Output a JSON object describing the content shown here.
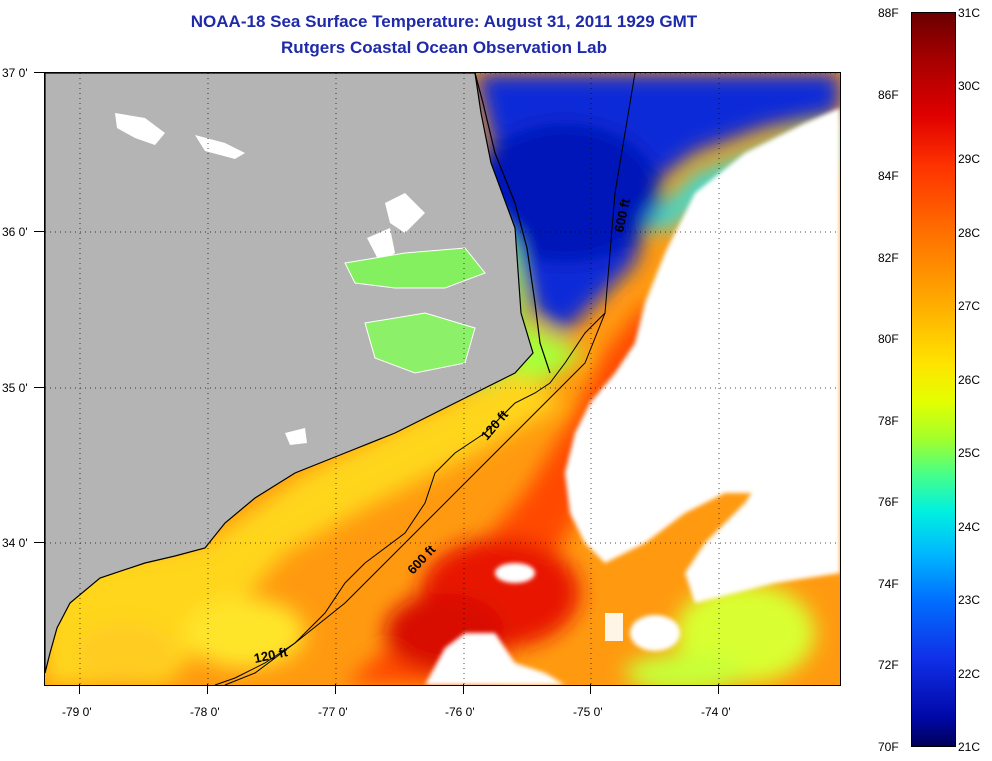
{
  "title": {
    "line1": "NOAA-18 Sea Surface Temperature:  August 31, 2011 1929 GMT",
    "line2": "Rutgers Coastal Ocean Observation Lab"
  },
  "map": {
    "lat_labels": [
      "37 0'",
      "36 0'",
      "35 0'",
      "34 0'"
    ],
    "lon_labels": [
      "-79 0'",
      "-78 0'",
      "-77 0'",
      "-76 0'",
      "-75 0'",
      "-74 0'"
    ],
    "contour_labels": [
      "600 ft",
      "120 ft",
      "600 ft",
      "120 ft"
    ],
    "colors": {
      "land": "#b4b4b4",
      "cloud": "#ffffff",
      "coast": "#000000"
    }
  },
  "colorbar": {
    "fahrenheit": [
      "88F",
      "86F",
      "84F",
      "82F",
      "80F",
      "78F",
      "76F",
      "74F",
      "72F",
      "70F"
    ],
    "celsius": [
      "31C",
      "30C",
      "29C",
      "28C",
      "27C",
      "26C",
      "25C",
      "24C",
      "23C",
      "22C",
      "21C"
    ]
  }
}
